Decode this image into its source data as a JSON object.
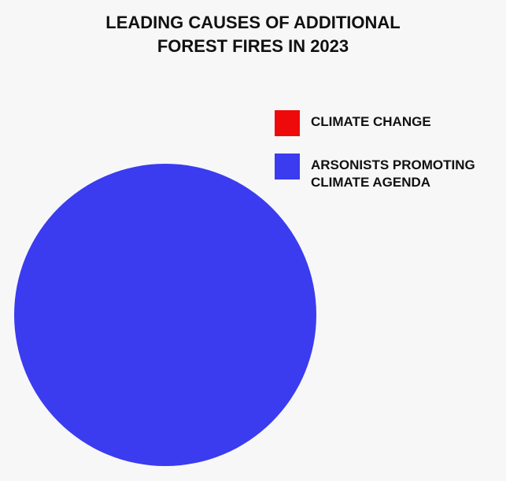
{
  "chart_data": {
    "type": "pie",
    "title": [
      "LEADING CAUSES OF ADDITIONAL",
      "FOREST FIRES IN 2023"
    ],
    "categories": [
      "CLIMATE CHANGE",
      "ARSONISTS PROMOTING CLIMATE AGENDA"
    ],
    "values": [
      0,
      100
    ],
    "colors": [
      "#ee0a0a",
      "#3b3bf0"
    ],
    "legend": "upper right"
  }
}
